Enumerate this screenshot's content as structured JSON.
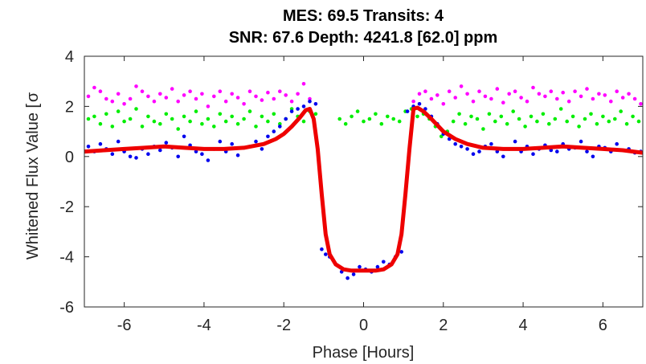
{
  "chart_data": {
    "type": "scatter",
    "title_line1": "MES: 69.5   Transits: 4",
    "title_line2": "SNR: 67.6    Depth: 4241.8 [62.0] ppm",
    "xlabel": "Phase [Hours]",
    "ylabel": "Whitened Flux Value [",
    "ylabel_overlap": "σ",
    "xlim": [
      -7,
      7
    ],
    "ylim": [
      -6,
      4
    ],
    "xticks": [
      -6,
      -4,
      -2,
      0,
      2,
      4,
      6
    ],
    "xtick_labels": [
      "-6",
      "-4",
      "-2",
      "0",
      "2",
      "4",
      "6"
    ],
    "yticks": [
      -6,
      -4,
      -2,
      0,
      2,
      4
    ],
    "ytick_labels": [
      "-6",
      "-4",
      "-2",
      "0",
      "2",
      "4"
    ],
    "grid": false,
    "series": [
      {
        "color": "#ff00ff",
        "style": "dots",
        "x": [
          -6.9,
          -6.75,
          -6.6,
          -6.45,
          -6.3,
          -6.15,
          -6.0,
          -5.85,
          -5.7,
          -5.55,
          -5.4,
          -5.25,
          -5.1,
          -4.95,
          -4.8,
          -4.65,
          -4.5,
          -4.35,
          -4.2,
          -4.05,
          -3.9,
          -3.75,
          -3.6,
          -3.45,
          -3.3,
          -3.15,
          -3.0,
          -2.85,
          -2.7,
          -2.55,
          -2.4,
          -2.25,
          -2.1,
          -1.95,
          -1.8,
          -1.65,
          -1.5,
          -1.35,
          1.25,
          1.4,
          1.55,
          1.7,
          1.85,
          2.0,
          2.15,
          2.3,
          2.45,
          2.6,
          2.75,
          2.9,
          3.05,
          3.2,
          3.35,
          3.5,
          3.65,
          3.8,
          3.95,
          4.1,
          4.25,
          4.4,
          4.55,
          4.7,
          4.85,
          5.0,
          5.15,
          5.3,
          5.45,
          5.6,
          5.75,
          5.9,
          6.05,
          6.2,
          6.35,
          6.5,
          6.65,
          6.8,
          6.95
        ],
        "y": [
          2.4,
          2.75,
          2.6,
          2.3,
          2.2,
          2.5,
          2.1,
          2.3,
          2.8,
          2.6,
          2.4,
          2.2,
          2.5,
          2.35,
          2.7,
          2.2,
          2.45,
          2.6,
          2.3,
          2.5,
          2.0,
          2.4,
          2.6,
          2.2,
          2.5,
          2.35,
          2.1,
          2.6,
          2.4,
          2.25,
          2.55,
          2.3,
          2.6,
          2.45,
          2.2,
          2.5,
          2.9,
          2.3,
          2.2,
          2.5,
          2.6,
          2.3,
          2.45,
          2.1,
          2.6,
          2.35,
          2.8,
          2.5,
          2.2,
          2.6,
          2.4,
          2.3,
          2.7,
          2.15,
          2.5,
          2.6,
          2.35,
          2.2,
          2.75,
          2.5,
          2.4,
          2.6,
          2.3,
          2.55,
          2.2,
          2.6,
          2.4,
          2.7,
          2.3,
          2.5,
          2.45,
          2.2,
          2.6,
          2.35,
          2.5,
          2.3,
          2.1
        ]
      },
      {
        "color": "#00ee00",
        "style": "dots",
        "x": [
          -6.9,
          -6.75,
          -6.6,
          -6.45,
          -6.3,
          -6.15,
          -6.0,
          -5.85,
          -5.7,
          -5.55,
          -5.4,
          -5.25,
          -5.1,
          -4.95,
          -4.8,
          -4.65,
          -4.5,
          -4.35,
          -4.2,
          -4.05,
          -3.9,
          -3.75,
          -3.6,
          -3.45,
          -3.3,
          -3.15,
          -3.0,
          -2.85,
          -2.7,
          -2.55,
          -2.4,
          -2.25,
          -2.1,
          -1.95,
          -1.8,
          -1.65,
          -1.5,
          -1.35,
          -1.2,
          -0.6,
          -0.45,
          -0.3,
          -0.15,
          0.0,
          0.15,
          0.3,
          0.45,
          0.6,
          0.75,
          0.9,
          1.05,
          1.2,
          1.35,
          1.5,
          1.65,
          1.8,
          1.95,
          2.1,
          2.25,
          2.4,
          2.55,
          2.7,
          2.85,
          3.0,
          3.15,
          3.3,
          3.45,
          3.6,
          3.75,
          3.9,
          4.05,
          4.2,
          4.35,
          4.5,
          4.65,
          4.8,
          4.95,
          5.1,
          5.25,
          5.4,
          5.55,
          5.7,
          5.85,
          6.0,
          6.15,
          6.3,
          6.45,
          6.6,
          6.75,
          6.9
        ],
        "y": [
          1.5,
          1.6,
          1.3,
          1.7,
          1.2,
          1.8,
          1.4,
          1.5,
          1.9,
          1.2,
          1.6,
          1.4,
          1.3,
          1.7,
          1.5,
          1.1,
          1.6,
          1.4,
          1.8,
          1.3,
          1.5,
          1.2,
          1.7,
          1.4,
          1.6,
          1.3,
          1.5,
          1.8,
          1.2,
          1.6,
          1.4,
          1.7,
          1.3,
          1.5,
          1.9,
          1.6,
          1.4,
          1.8,
          1.7,
          1.5,
          1.3,
          1.6,
          1.8,
          1.4,
          1.5,
          1.7,
          1.3,
          1.6,
          1.5,
          1.4,
          1.8,
          1.9,
          1.6,
          1.7,
          1.5,
          1.2,
          0.8,
          1.0,
          1.4,
          1.7,
          1.3,
          1.6,
          1.5,
          1.1,
          1.7,
          1.4,
          1.6,
          1.3,
          1.8,
          1.5,
          1.2,
          1.6,
          1.4,
          1.7,
          1.3,
          1.5,
          1.9,
          1.4,
          1.6,
          1.2,
          1.5,
          1.7,
          1.3,
          1.6,
          1.4,
          1.5,
          1.8,
          1.3,
          1.6,
          1.4
        ]
      },
      {
        "color": "#0000ee",
        "style": "dots",
        "x": [
          -6.9,
          -6.75,
          -6.6,
          -6.45,
          -6.3,
          -6.15,
          -6.0,
          -5.85,
          -5.7,
          -5.55,
          -5.4,
          -5.25,
          -5.1,
          -4.95,
          -4.8,
          -4.65,
          -4.5,
          -4.35,
          -4.2,
          -4.05,
          -3.9,
          -3.75,
          -3.6,
          -3.45,
          -3.3,
          -3.15,
          -3.0,
          -2.85,
          -2.7,
          -2.55,
          -2.4,
          -2.25,
          -2.1,
          -1.95,
          -1.8,
          -1.65,
          -1.5,
          -1.35,
          -1.2,
          -1.05,
          -0.95,
          -0.85,
          -0.7,
          -0.55,
          -0.4,
          -0.25,
          -0.1,
          0.05,
          0.2,
          0.35,
          0.5,
          0.65,
          0.8,
          0.95,
          1.1,
          1.25,
          1.4,
          1.55,
          1.7,
          1.85,
          2.0,
          2.15,
          2.3,
          2.45,
          2.6,
          2.75,
          2.9,
          3.05,
          3.2,
          3.35,
          3.5,
          3.65,
          3.8,
          3.95,
          4.1,
          4.25,
          4.4,
          4.55,
          4.7,
          4.85,
          5.0,
          5.15,
          5.3,
          5.45,
          5.6,
          5.75,
          5.9,
          6.05,
          6.2,
          6.35,
          6.5,
          6.65,
          6.8,
          6.95
        ],
        "y": [
          0.4,
          0.2,
          0.5,
          0.3,
          0.1,
          0.6,
          0.2,
          0.0,
          -0.05,
          0.3,
          0.1,
          0.4,
          0.25,
          0.55,
          0.35,
          0.0,
          0.8,
          0.45,
          0.2,
          0.1,
          -0.15,
          0.3,
          0.6,
          0.2,
          0.5,
          0.05,
          0.35,
          0.4,
          0.6,
          0.3,
          0.8,
          1.0,
          1.2,
          1.5,
          1.8,
          1.9,
          2.0,
          2.2,
          2.1,
          -3.7,
          -3.9,
          -4.0,
          -4.3,
          -4.6,
          -4.85,
          -4.7,
          -4.4,
          -4.5,
          -4.6,
          -4.4,
          -4.2,
          -4.3,
          -4.0,
          -3.8,
          1.8,
          2.0,
          2.1,
          1.9,
          1.6,
          1.3,
          0.9,
          0.7,
          0.5,
          0.4,
          0.3,
          0.1,
          0.2,
          0.4,
          0.5,
          0.2,
          0.0,
          0.3,
          0.6,
          0.2,
          0.4,
          0.1,
          0.3,
          0.45,
          0.25,
          0.2,
          0.5,
          0.3,
          0.35,
          0.6,
          0.2,
          0.0,
          0.4,
          0.35,
          0.2,
          0.5,
          0.25,
          0.3,
          0.15,
          0.2
        ]
      },
      {
        "color": "#ee0000",
        "style": "line",
        "x": [
          -7.0,
          -6.5,
          -6.0,
          -5.5,
          -5.0,
          -4.5,
          -4.0,
          -3.5,
          -3.0,
          -2.5,
          -2.2,
          -2.0,
          -1.8,
          -1.6,
          -1.45,
          -1.35,
          -1.25,
          -1.15,
          -1.05,
          -0.95,
          -0.85,
          -0.7,
          -0.5,
          -0.3,
          0.0,
          0.3,
          0.5,
          0.7,
          0.85,
          0.95,
          1.05,
          1.15,
          1.25,
          1.35,
          1.5,
          1.7,
          2.0,
          2.3,
          2.6,
          3.0,
          3.5,
          4.0,
          4.5,
          5.0,
          5.5,
          6.0,
          6.5,
          7.0
        ],
        "y": [
          0.2,
          0.25,
          0.3,
          0.35,
          0.4,
          0.35,
          0.3,
          0.3,
          0.35,
          0.5,
          0.7,
          0.9,
          1.2,
          1.55,
          1.85,
          1.9,
          1.5,
          0.3,
          -1.5,
          -3.1,
          -3.9,
          -4.3,
          -4.5,
          -4.55,
          -4.55,
          -4.55,
          -4.5,
          -4.3,
          -3.9,
          -3.1,
          -1.5,
          0.3,
          1.9,
          1.95,
          1.8,
          1.5,
          1.0,
          0.7,
          0.5,
          0.35,
          0.3,
          0.3,
          0.35,
          0.4,
          0.35,
          0.3,
          0.25,
          0.15
        ]
      }
    ]
  }
}
